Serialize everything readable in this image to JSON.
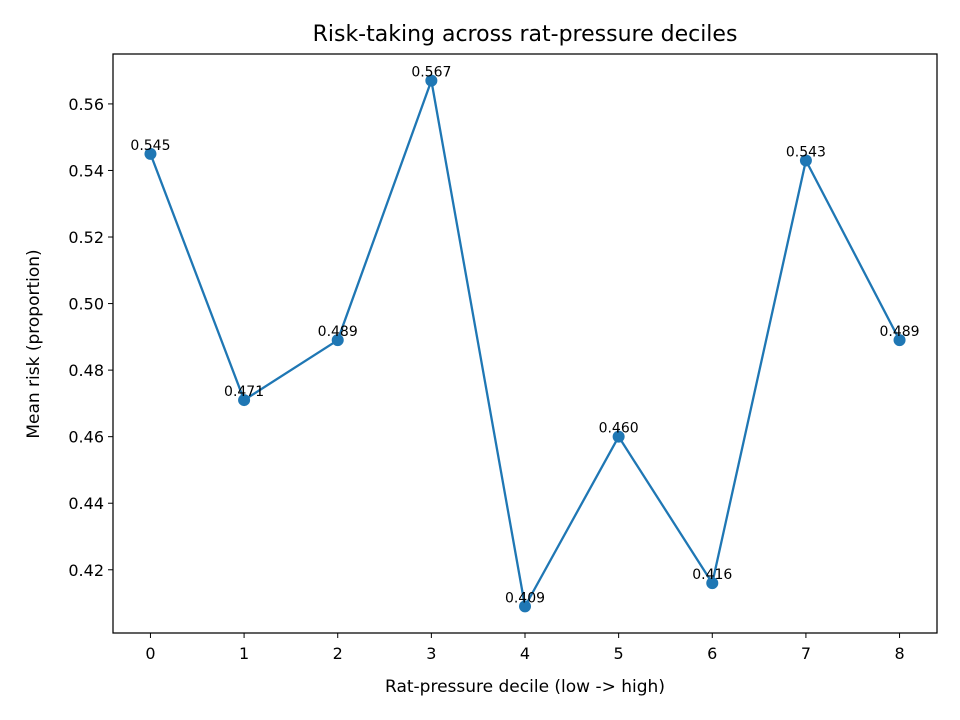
{
  "chart_data": {
    "type": "line",
    "title": "Risk-taking across rat-pressure deciles",
    "xlabel": "Rat-pressure decile (low -> high)",
    "ylabel": "Mean risk (proportion)",
    "x": [
      0,
      1,
      2,
      3,
      4,
      5,
      6,
      7,
      8
    ],
    "x_tick_labels": [
      "0",
      "1",
      "2",
      "3",
      "4",
      "5",
      "6",
      "7",
      "8"
    ],
    "y_ticks": [
      0.42,
      0.44,
      0.46,
      0.48,
      0.5,
      0.52,
      0.54,
      0.56
    ],
    "y_tick_labels": [
      "0.42",
      "0.44",
      "0.46",
      "0.48",
      "0.50",
      "0.52",
      "0.54",
      "0.56"
    ],
    "xlim": [
      -0.4,
      8.4
    ],
    "ylim": [
      0.401,
      0.575
    ],
    "grid": false,
    "series": [
      {
        "values": [
          0.545,
          0.471,
          0.489,
          0.567,
          0.409,
          0.46,
          0.416,
          0.543,
          0.489
        ],
        "labels": [
          "0.545",
          "0.471",
          "0.489",
          "0.567",
          "0.409",
          "0.460",
          "0.416",
          "0.543",
          "0.489"
        ],
        "color": "#1f77b4",
        "marker": "circle"
      }
    ]
  }
}
